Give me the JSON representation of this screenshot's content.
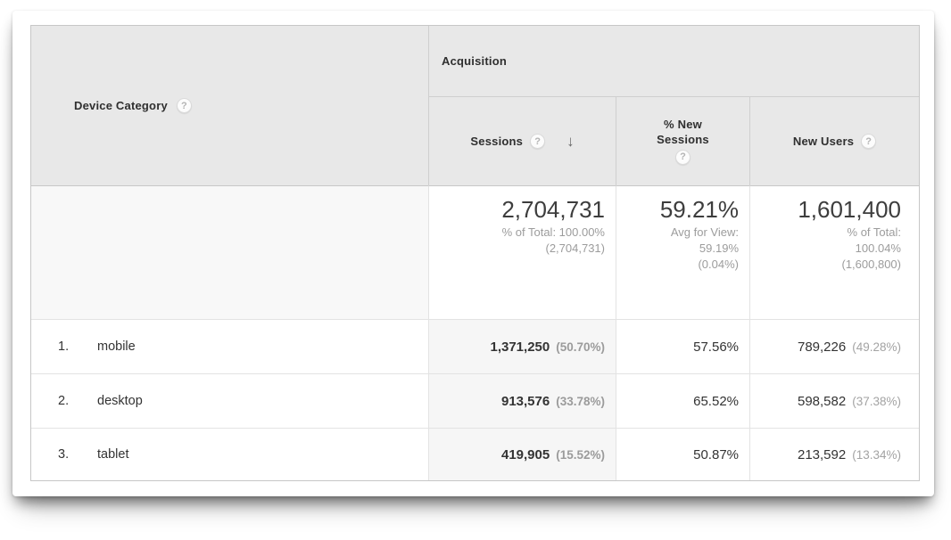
{
  "table": {
    "dimension_header": "Device Category",
    "group_header": "Acquisition",
    "help_glyph": "?",
    "sort_arrow": "↓",
    "columns": {
      "sessions": "Sessions",
      "new_sessions_line1": "% New",
      "new_sessions_line2": "Sessions",
      "new_users": "New Users"
    },
    "summary": {
      "sessions_value": "2,704,731",
      "sessions_note": "% of Total: 100.00%\n(2,704,731)",
      "new_sessions_value": "59.21%",
      "new_sessions_note": "Avg for View:\n59.19%\n(0.04%)",
      "new_users_value": "1,601,400",
      "new_users_note": "% of Total:\n100.04%\n(1,600,800)"
    },
    "rows": [
      {
        "rank": "1.",
        "label": "mobile",
        "sessions": "1,371,250",
        "sessions_pct": "(50.70%)",
        "new_sessions": "57.56%",
        "new_users": "789,226",
        "new_users_pct": "(49.28%)"
      },
      {
        "rank": "2.",
        "label": "desktop",
        "sessions": "913,576",
        "sessions_pct": "(33.78%)",
        "new_sessions": "65.52%",
        "new_users": "598,582",
        "new_users_pct": "(37.38%)"
      },
      {
        "rank": "3.",
        "label": "tablet",
        "sessions": "419,905",
        "sessions_pct": "(15.52%)",
        "new_sessions": "50.87%",
        "new_users": "213,592",
        "new_users_pct": "(13.34%)"
      }
    ],
    "colors": {
      "header_bg": "#e8e8e8",
      "summary_dim_bg": "#f8f8f8",
      "sorted_column_bg": "#f6f6f6",
      "outer_border": "#c7c7c7",
      "inner_border": "#e3e3e3",
      "primary_text": "#333333",
      "secondary_text": "#9c9c9c"
    }
  }
}
